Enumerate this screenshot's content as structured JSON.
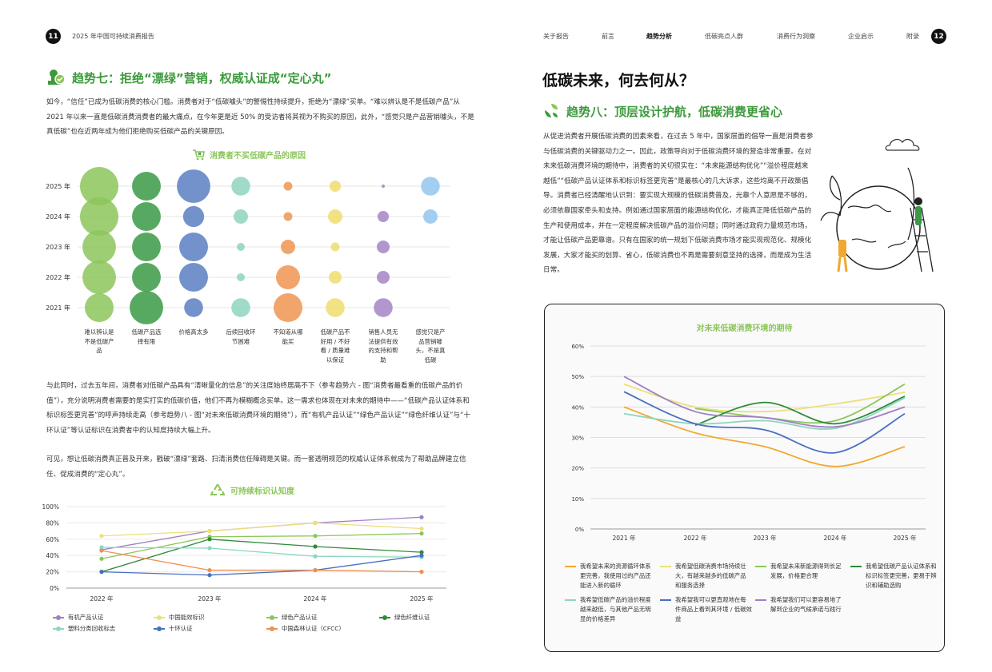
{
  "header": {
    "left_page_number": "11",
    "report_title": "2025 年中国可持续消费报告",
    "right_page_number": "12",
    "nav": [
      {
        "label": "关于报告",
        "active": false
      },
      {
        "label": "前言",
        "active": false
      },
      {
        "label": "趋势分析",
        "active": true
      },
      {
        "label": "低碳亮点人群",
        "active": false
      },
      {
        "label": "消费行为洞察",
        "active": false
      },
      {
        "label": "企业启示",
        "active": false
      },
      {
        "label": "附录",
        "active": false
      }
    ]
  },
  "left": {
    "title": "趋势七：拒绝“漂绿”营销，权威认证成“定心丸”",
    "para1": "如今，“信任”已成为低碳消费的核心门槛。消费者对于“低碳噱头”的警惕性持续提升，拒绝为“漂绿”买单。“难以辨认是不是低碳产品”从 2021 年以来一直是低碳消费消费者的最大痛点，在今年更是近 50% 的受访者将其视为不购买的原因，此外，“感觉只是产品营销噱头，不是真低碳”也在近两年成为他们拒绝购买低碳产品的关键原因。",
    "para2": "与此同时，过去五年间，消费者对低碳产品具有“清晰量化的信息”的关注度始终居高不下（参考趋势六 - 图“消费者最看重的低碳产品的价值”），充分说明消费者需要的是实打实的低碳价值，他们不再为模糊概念买单。这一需求也体现在对未来的期待中——“低碳产品认证体系和标识标签更完善”的呼声持续走高（参考趋势八 - 图“对未来低碳消费环境的期待”），而“有机产品认证”“绿色产品认证”“绿色纤维认证”与“十环认证”等认证标识在消费者中的认知度持续大幅上升。",
    "para3": "可见，想让低碳消费真正普及开来，戳破“漂绿”套路、扫清消费信任障碍是关键。而一套透明规范的权威认证体系就成为了帮助品牌建立信任、促成消费的“定心丸”。"
  },
  "right": {
    "heading": "低碳未来，何去何从？",
    "title": "趋势八：顶层设计护航，低碳消费更省心",
    "para1": "从促进消费者开展低碳消费的因素来看，在过去 5 年中，国家层面的倡导一直是消费者参与低碳消费的关键驱动力之一。因此，政策导向对于低碳消费环境的营造非常重要。在对未来低碳消费环境的期待中，消费者的关切很实在：“未来能源结构优化”“溢价程度越来越低”“低碳产品认证体系和标识标签更完善”是最核心的几大诉求，这些均离不开政策倡导。消费者已经清醒地认识到：要实现大规模的低碳消费普及，光靠个人意愿是不够的，必须依靠国家牵头和支持。例如通过国家层面的能源结构优化，才能真正降低低碳产品的生产和使用成本，并在一定程度解决低碳产品的溢价问题；同时通过政府力量规范市场，才能让低碳产品更靠谱。只有在国家的统一规划下低碳消费市场才能实现规范化、规模化发展，大家才能买的划算、省心，低碳消费也不再是需要刻意坚持的选择，而是成为生活日常。"
  },
  "icons": {
    "trend7": "certificate-seal-icon",
    "trend8": "recycle-leaf-icon",
    "chart1": "cart-x-icon",
    "chart2": "recycle-icon",
    "illustration": "globe-gardener-illustration"
  },
  "chart_data": [
    {
      "type": "scatter",
      "subtype": "bubble",
      "title": "消费者不买低碳产品的原因",
      "categories": [
        "难以辨认是不是低碳产品",
        "低碳产品选择有限",
        "价格高太多",
        "后续回收环节困难",
        "不知道从哪能买",
        "低碳产品不好用 / 不好看 / 质量难以保证",
        "销售人员无法提供有效的支持和帮助",
        "感觉只是产品营销噱头，不是真低碳"
      ],
      "years": [
        "2025 年",
        "2024 年",
        "2023 年",
        "2022 年",
        "2021 年"
      ],
      "colors": [
        "#8cc65a",
        "#3a9a45",
        "#5a7fc2",
        "#8fd3bf",
        "#ef9550",
        "#eedd6e",
        "#a585c6",
        "#92c7ee"
      ],
      "values": [
        [
          50,
          28,
          38,
          12,
          2.6,
          4.3,
          0.4,
          12
        ],
        [
          50,
          28,
          15,
          7,
          2.6,
          7,
          4.3,
          7
        ],
        [
          38,
          28,
          28,
          2.2,
          7,
          2.6,
          5.6,
          null
        ],
        [
          38,
          28,
          28,
          2.2,
          19.5,
          5.6,
          5.6,
          null
        ],
        [
          28,
          38,
          12,
          12,
          28,
          12,
          12,
          null
        ]
      ]
    },
    {
      "type": "line",
      "title": "可持续标识认知度",
      "x": [
        "2022 年",
        "2023 年",
        "2024 年",
        "2025 年"
      ],
      "ylim": [
        0,
        100
      ],
      "yticks": [
        "0%",
        "20%",
        "40%",
        "60%",
        "80%",
        "100%"
      ],
      "grid": true,
      "legend": "bottom",
      "series": [
        {
          "name": "有机产品认证",
          "color": "#a07fc6",
          "values": [
            47,
            70,
            80,
            87
          ]
        },
        {
          "name": "中国能效标识",
          "color": "#ede07a",
          "values": [
            64,
            70,
            80,
            73
          ]
        },
        {
          "name": "绿色产品认证",
          "color": "#8cc65a",
          "values": [
            36,
            63,
            64,
            67
          ]
        },
        {
          "name": "绿色纤维认证",
          "color": "#2e8b3a",
          "values": [
            20,
            60,
            51,
            44
          ]
        },
        {
          "name": "塑料分类回收标志",
          "color": "#8ed6c0",
          "values": [
            50,
            49,
            39,
            38
          ]
        },
        {
          "name": "十环认证",
          "color": "#4a70c0",
          "values": [
            20,
            16,
            22,
            40
          ]
        },
        {
          "name": "中国森林认证（CFCC）",
          "color": "#f09050",
          "values": [
            46,
            22,
            22,
            20
          ]
        }
      ]
    },
    {
      "type": "line",
      "smooth": true,
      "title": "对未来低碳消费环境的期待",
      "x": [
        "2021 年",
        "2022 年",
        "2023 年",
        "2024 年",
        "2025 年"
      ],
      "ylim": [
        0,
        60
      ],
      "yticks": [
        "0%",
        "10%",
        "20%",
        "30%",
        "40%",
        "50%",
        "60%"
      ],
      "grid": true,
      "legend": "bottom",
      "series": [
        {
          "name": "我希望未来的资源循环体系更完善，我使用过的产品还能进入新的循环",
          "color": "#f0a830",
          "values": [
            40,
            31.5,
            27,
            20.5,
            27
          ]
        },
        {
          "name": "我希望低碳消费市场持续壮大，有越来越多的低碳产品和服务选择",
          "color": "#ede07a",
          "values": [
            47.5,
            40,
            38.5,
            41,
            44.8
          ]
        },
        {
          "name": "我希望未来新能源得到长足发展，价格更合理",
          "color": "#8cc65a",
          "values": [
            null,
            39.5,
            36.5,
            35.5,
            47.5
          ]
        },
        {
          "name": "我希望低碳产品认证体系和标识标签更完善，更易于辨识和辅助选购",
          "color": "#2e8b3a",
          "values": [
            null,
            34,
            41.5,
            34.5,
            43.5
          ]
        },
        {
          "name": "我希望低碳产品的溢价程度越来越低，与其他产品无明显的价格差异",
          "color": "#8ed6c0",
          "values": [
            37.8,
            34.5,
            35.5,
            33,
            43
          ]
        },
        {
          "name": "我希望我可以更直观地在每件商品上看到其环境 / 低碳效益",
          "color": "#4a70c0",
          "values": [
            45,
            34.5,
            32.5,
            25,
            37.8
          ]
        },
        {
          "name": "我希望我们可以更容易地了解到企业的气候承诺与践行",
          "color": "#a07fc6",
          "values": [
            50,
            38.5,
            36.5,
            33.5,
            40
          ]
        }
      ]
    }
  ]
}
